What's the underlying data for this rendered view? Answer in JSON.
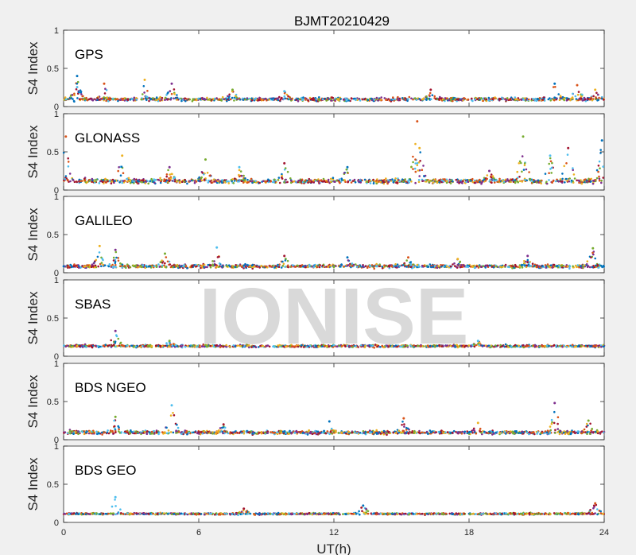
{
  "chart_data": {
    "type": "scatter",
    "title": "BJMT20210429",
    "xlabel": "UT(h)",
    "ylabel": "S4 Index",
    "xlim": [
      0,
      24
    ],
    "ylim": [
      0,
      1
    ],
    "x_ticks": [
      0,
      6,
      12,
      18,
      24
    ],
    "y_ticks": [
      0,
      0.5,
      1
    ],
    "y_tick_labels": [
      "0",
      "0.5",
      "1"
    ],
    "watermark": "IONISE",
    "grid": false,
    "series_colors": [
      "#0072bd",
      "#d95319",
      "#edb120",
      "#7e2f8e",
      "#77ac30",
      "#4dbeee",
      "#a2142f"
    ],
    "panels": [
      {
        "label": "GPS",
        "baseline": 0.09,
        "spread": 0.03,
        "bumps": [
          [
            0.6,
            0.4
          ],
          [
            1.8,
            0.3
          ],
          [
            3.6,
            0.35
          ],
          [
            4.8,
            0.3
          ],
          [
            7.5,
            0.22
          ],
          [
            9.8,
            0.2
          ],
          [
            16.3,
            0.22
          ],
          [
            21.8,
            0.3
          ],
          [
            22.8,
            0.28
          ],
          [
            23.6,
            0.22
          ]
        ]
      },
      {
        "label": "GLONASS",
        "baseline": 0.11,
        "spread": 0.04,
        "bumps": [
          [
            0.1,
            0.7
          ],
          [
            2.6,
            0.45
          ],
          [
            4.7,
            0.3
          ],
          [
            6.3,
            0.4
          ],
          [
            7.8,
            0.3
          ],
          [
            9.8,
            0.35
          ],
          [
            12.6,
            0.3
          ],
          [
            15.7,
            0.9
          ],
          [
            15.8,
            0.55
          ],
          [
            18.9,
            0.25
          ],
          [
            20.4,
            0.7
          ],
          [
            21.6,
            0.45
          ],
          [
            22.4,
            0.55
          ],
          [
            23.9,
            0.65
          ]
        ]
      },
      {
        "label": "GALILEO",
        "baseline": 0.08,
        "spread": 0.03,
        "bumps": [
          [
            1.6,
            0.35
          ],
          [
            2.3,
            0.3
          ],
          [
            4.5,
            0.25
          ],
          [
            6.8,
            0.33
          ],
          [
            9.8,
            0.22
          ],
          [
            12.6,
            0.2
          ],
          [
            15.3,
            0.2
          ],
          [
            17.5,
            0.18
          ],
          [
            20.6,
            0.22
          ],
          [
            23.5,
            0.32
          ]
        ]
      },
      {
        "label": "SBAS",
        "baseline": 0.13,
        "spread": 0.02,
        "bumps": [
          [
            2.3,
            0.33
          ],
          [
            4.7,
            0.2
          ],
          [
            18.4,
            0.2
          ]
        ]
      },
      {
        "label": "BDS NGEO",
        "baseline": 0.09,
        "spread": 0.03,
        "bumps": [
          [
            2.3,
            0.3
          ],
          [
            4.8,
            0.45
          ],
          [
            7.1,
            0.2
          ],
          [
            11.8,
            0.24
          ],
          [
            15.1,
            0.28
          ],
          [
            18.4,
            0.22
          ],
          [
            21.8,
            0.48
          ],
          [
            23.3,
            0.25
          ]
        ]
      },
      {
        "label": "BDS GEO",
        "baseline": 0.11,
        "spread": 0.015,
        "bumps": [
          [
            2.3,
            0.33
          ],
          [
            8.0,
            0.18
          ],
          [
            13.3,
            0.22
          ],
          [
            23.6,
            0.25
          ]
        ]
      }
    ]
  }
}
